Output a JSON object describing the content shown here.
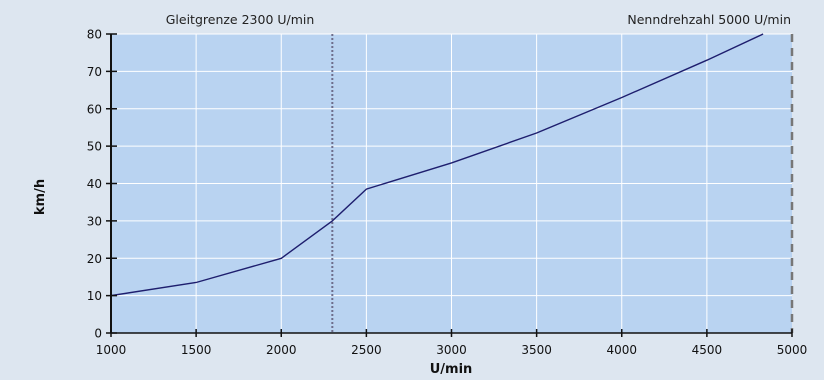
{
  "chart_data": {
    "type": "line",
    "xlabel": "U/min",
    "ylabel": "km/h",
    "xlim": [
      1000,
      5000
    ],
    "ylim": [
      0,
      80
    ],
    "x_ticks": [
      1000,
      1500,
      2000,
      2500,
      3000,
      3500,
      4000,
      4500,
      5000
    ],
    "y_ticks": [
      0,
      10,
      20,
      30,
      40,
      50,
      60,
      70,
      80
    ],
    "grid": true,
    "series": [
      {
        "color": "#1e1e6e",
        "x": [
          1000,
          1500,
          2000,
          2300,
          2500,
          3000,
          3500,
          4000,
          4500,
          4830
        ],
        "y": [
          10,
          13.5,
          20,
          30,
          38.5,
          45.5,
          53.5,
          63,
          73,
          80
        ]
      }
    ],
    "annotations": [
      {
        "text": "Gleitgrenze 2300 U/min",
        "x": 2300,
        "style": "dotted",
        "color": "#6e6e8c"
      },
      {
        "text": "Nenndrehzahl 5000 U/min",
        "x": 5000,
        "style": "dashed",
        "color": "#777777"
      }
    ]
  },
  "colors": {
    "page_background": "#dde6f0",
    "plot_background": "#b9d3f1",
    "grid": "#ffffff",
    "axis": "#111111"
  }
}
